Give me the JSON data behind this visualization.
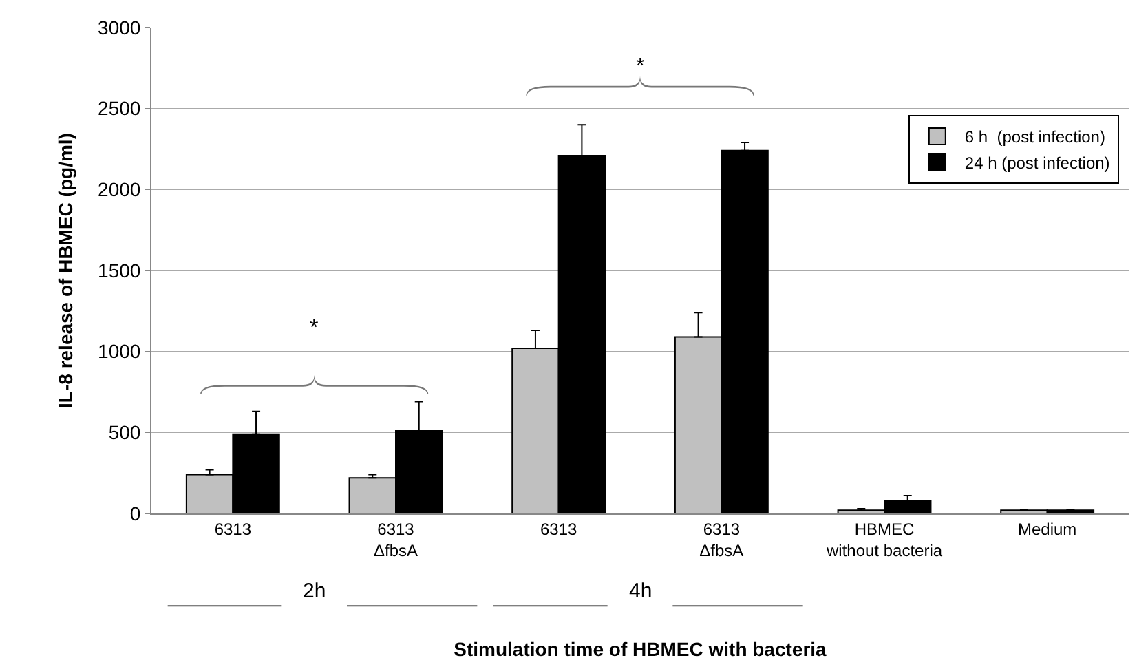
{
  "chart_data": {
    "type": "bar",
    "xlabel": "Stimulation time of HBMEC with bacteria",
    "ylabel": "IL-8 release of HBMEC (pg/ml)",
    "categories": [
      "6313",
      "6313\nΔfbsA",
      "6313",
      "6313\nΔfbsA",
      "HBMEC\nwithout bacteria",
      "Medium"
    ],
    "series": [
      {
        "name": "6 h  (post infection)",
        "color": "#c0c0c0",
        "values": [
          240,
          220,
          1020,
          1090,
          20,
          20
        ],
        "errors": [
          [
            240,
            270
          ],
          [
            220,
            240
          ],
          [
            1020,
            1130
          ],
          [
            1090,
            1240
          ],
          [
            20,
            30
          ],
          [
            20,
            25
          ]
        ]
      },
      {
        "name": "24 h (post infection)",
        "color": "#000000",
        "values": [
          490,
          510,
          2210,
          2240,
          80,
          20
        ],
        "errors": [
          [
            490,
            630
          ],
          [
            510,
            690
          ],
          [
            2210,
            2400
          ],
          [
            2240,
            2290
          ],
          [
            80,
            110
          ],
          [
            20,
            25
          ]
        ]
      }
    ],
    "ylim": [
      0,
      3000
    ],
    "yticks": [
      0,
      500,
      1000,
      1500,
      2000,
      2500,
      3000
    ],
    "grid": "y",
    "legend": "top right",
    "annotations": [
      "*",
      "*",
      "2h",
      "4h"
    ]
  }
}
